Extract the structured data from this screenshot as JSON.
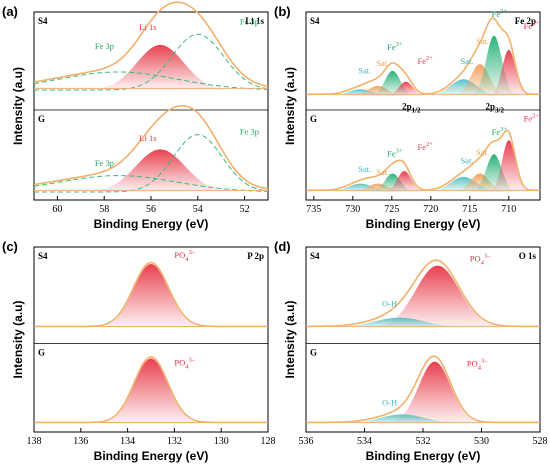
{
  "colors": {
    "envelope": "#f2b06b",
    "li": "#e8414f",
    "fe_green": "#2db37a",
    "fe_red": "#e8414f",
    "sat_orange": "#f5a05e",
    "sat_teal": "#5bc0c9",
    "po4": "#e8414f",
    "oh": "#5bc0c9",
    "green_label": "#1fa463",
    "red_label": "#e8303f",
    "orange_label": "#f0a050",
    "teal_label": "#3fb6c0",
    "dashed": "#3cb97a"
  },
  "chart_data": [
    {
      "id": "a",
      "type": "line",
      "panel_label": "(a)",
      "spectrum": "Li 1s",
      "xlabel": "Binding Energy (eV)",
      "ylabel": "Intensity (a.u)",
      "xlim": [
        61,
        51
      ],
      "xticks": [
        60,
        58,
        56,
        54,
        52
      ],
      "samples": [
        {
          "name": "S4",
          "peaks": [
            {
              "label": "Li 1s",
              "center": 55.6,
              "height": 0.55,
              "width": 1.0,
              "style": "filled",
              "color": "li"
            },
            {
              "label": "Fe 3p",
              "center": 57.4,
              "height": 0.22,
              "width": 2.5,
              "style": "dashed",
              "color": "dashed"
            },
            {
              "label": "Fe 3p",
              "center": 54.0,
              "height": 0.68,
              "width": 1.1,
              "style": "dashed",
              "color": "dashed"
            }
          ],
          "peak_labels": [
            {
              "text": "Li 1s",
              "color": "red_label",
              "x": 56.5,
              "y": 0.73
            },
            {
              "text": "Fe 3p",
              "color": "green_label",
              "x": 58.4,
              "y": 0.5
            },
            {
              "text": "Fe 3p",
              "color": "green_label",
              "x": 52.2,
              "y": 0.8
            }
          ]
        },
        {
          "name": "G",
          "peaks": [
            {
              "label": "Li 1s",
              "center": 55.6,
              "height": 0.52,
              "width": 1.05,
              "style": "filled",
              "color": "li"
            },
            {
              "label": "Fe 3p",
              "center": 57.4,
              "height": 0.2,
              "width": 2.5,
              "style": "dashed",
              "color": "dashed"
            },
            {
              "label": "Fe 3p",
              "center": 54.0,
              "height": 0.7,
              "width": 1.05,
              "style": "dashed",
              "color": "dashed"
            }
          ],
          "peak_labels": [
            {
              "text": "Li 1s",
              "color": "red_label",
              "x": 56.5,
              "y": 0.62
            },
            {
              "text": "Fe 3p",
              "color": "green_label",
              "x": 58.4,
              "y": 0.32
            },
            {
              "text": "Fe 3p",
              "color": "green_label",
              "x": 52.2,
              "y": 0.7
            }
          ]
        }
      ]
    },
    {
      "id": "b",
      "type": "line",
      "panel_label": "(b)",
      "spectrum": "Fe 2p",
      "xlabel": "Binding Energy (eV)",
      "ylabel": "Intensity (a.u)",
      "xlim": [
        736,
        706
      ],
      "xticks": [
        735,
        730,
        725,
        720,
        715,
        710
      ],
      "annotations": [
        "2p1/2",
        "2p3/2"
      ],
      "samples": [
        {
          "name": "S4",
          "peaks": [
            {
              "label": "Sat.",
              "center": 729.0,
              "height": 0.08,
              "width": 1.6,
              "color": "sat_teal"
            },
            {
              "label": "Sat.",
              "center": 726.8,
              "height": 0.12,
              "width": 1.3,
              "color": "sat_orange"
            },
            {
              "label": "Fe3+",
              "center": 724.9,
              "height": 0.3,
              "width": 1.0,
              "color": "fe_green"
            },
            {
              "label": "Fe2+",
              "center": 723.2,
              "height": 0.17,
              "width": 0.9,
              "color": "fe_red"
            },
            {
              "label": "Sat.",
              "center": 715.8,
              "height": 0.2,
              "width": 1.7,
              "color": "sat_teal"
            },
            {
              "label": "Sat.",
              "center": 713.7,
              "height": 0.38,
              "width": 1.2,
              "color": "sat_orange"
            },
            {
              "label": "Fe3+",
              "center": 711.9,
              "height": 0.72,
              "width": 1.0,
              "color": "fe_green"
            },
            {
              "label": "Fe2+",
              "center": 710.0,
              "height": 0.55,
              "width": 0.85,
              "color": "fe_red"
            }
          ],
          "peak_labels": [
            {
              "text": "Sat.",
              "color": "teal_label",
              "x": 729.3,
              "y": 0.27
            },
            {
              "text": "Sat.",
              "color": "orange_label",
              "x": 727.0,
              "y": 0.36
            },
            {
              "text": "Fe3+",
              "color": "green_label",
              "x": 725.6,
              "y": 0.55
            },
            {
              "text": "Fe2+",
              "color": "red_label",
              "x": 721.7,
              "y": 0.38
            },
            {
              "text": "Sat.",
              "color": "teal_label",
              "x": 716.2,
              "y": 0.38
            },
            {
              "text": "Sat.",
              "color": "orange_label",
              "x": 714.2,
              "y": 0.62
            },
            {
              "text": "Fe3+",
              "color": "green_label",
              "x": 712.2,
              "y": 0.94
            },
            {
              "text": "Fe2+",
              "color": "red_label",
              "x": 708.1,
              "y": 0.8
            }
          ]
        },
        {
          "name": "G",
          "peaks": [
            {
              "label": "Sat.",
              "center": 729.0,
              "height": 0.1,
              "width": 1.6,
              "color": "sat_teal"
            },
            {
              "label": "Sat.",
              "center": 726.8,
              "height": 0.1,
              "width": 1.3,
              "color": "sat_orange"
            },
            {
              "label": "Fe3+",
              "center": 724.9,
              "height": 0.22,
              "width": 1.0,
              "color": "fe_green"
            },
            {
              "label": "Fe2+",
              "center": 723.4,
              "height": 0.25,
              "width": 0.9,
              "color": "fe_red"
            },
            {
              "label": "Sat.",
              "center": 715.8,
              "height": 0.18,
              "width": 1.7,
              "color": "sat_teal"
            },
            {
              "label": "Sat.",
              "center": 713.7,
              "height": 0.22,
              "width": 1.2,
              "color": "sat_orange"
            },
            {
              "label": "Fe3+",
              "center": 711.9,
              "height": 0.45,
              "width": 1.0,
              "color": "fe_green"
            },
            {
              "label": "Fe2+",
              "center": 710.0,
              "height": 0.62,
              "width": 0.85,
              "color": "fe_red"
            }
          ],
          "peak_labels": [
            {
              "text": "Sat.",
              "color": "teal_label",
              "x": 729.3,
              "y": 0.24
            },
            {
              "text": "Sat.",
              "color": "orange_label",
              "x": 727.0,
              "y": 0.2
            },
            {
              "text": "Fe3+",
              "color": "green_label",
              "x": 725.6,
              "y": 0.42
            },
            {
              "text": "Fe2+",
              "color": "red_label",
              "x": 721.7,
              "y": 0.5
            },
            {
              "text": "Sat.",
              "color": "teal_label",
              "x": 716.2,
              "y": 0.34
            },
            {
              "text": "Sat.",
              "color": "orange_label",
              "x": 714.2,
              "y": 0.44
            },
            {
              "text": "Fe3+",
              "color": "green_label",
              "x": 712.2,
              "y": 0.68
            },
            {
              "text": "Fe2+",
              "color": "red_label",
              "x": 708.1,
              "y": 0.84
            }
          ]
        }
      ]
    },
    {
      "id": "c",
      "type": "line",
      "panel_label": "(c)",
      "spectrum": "P 2p",
      "xlabel": "Binding Energy (eV)",
      "ylabel": "Intensity (a.u)",
      "xlim": [
        138,
        128
      ],
      "xticks": [
        138,
        136,
        134,
        132,
        130,
        128
      ],
      "samples": [
        {
          "name": "S4",
          "peaks": [
            {
              "label": "PO4 3-",
              "center": 133.0,
              "height": 0.82,
              "width": 0.75,
              "color": "po4"
            }
          ],
          "peak_labels": [
            {
              "text": "PO4 3-",
              "color": "red_label",
              "x": 132.0,
              "y": 0.9
            }
          ]
        },
        {
          "name": "G",
          "peaks": [
            {
              "label": "PO4 3-",
              "center": 133.0,
              "height": 0.84,
              "width": 0.72,
              "color": "po4"
            }
          ],
          "peak_labels": [
            {
              "text": "PO4 3-",
              "color": "red_label",
              "x": 132.0,
              "y": 0.75
            }
          ]
        }
      ]
    },
    {
      "id": "d",
      "type": "line",
      "panel_label": "(d)",
      "spectrum": "O 1s",
      "xlabel": "Binding Energy (eV)",
      "ylabel": "Intensity (a.u)",
      "xlim": [
        536,
        528
      ],
      "xticks": [
        536,
        534,
        532,
        530,
        528
      ],
      "samples": [
        {
          "name": "S4",
          "peaks": [
            {
              "label": "PO4 3-",
              "center": 531.5,
              "height": 0.78,
              "width": 0.75,
              "color": "po4"
            },
            {
              "label": "O-H",
              "center": 532.8,
              "height": 0.13,
              "width": 0.9,
              "color": "oh"
            }
          ],
          "peak_labels": [
            {
              "text": "PO4 3-",
              "color": "red_label",
              "x": 530.4,
              "y": 0.83
            },
            {
              "text": "O-H",
              "color": "teal_label",
              "x": 533.4,
              "y": 0.27
            }
          ]
        },
        {
          "name": "G",
          "peaks": [
            {
              "label": "PO4 3-",
              "center": 531.6,
              "height": 0.78,
              "width": 0.55,
              "color": "po4"
            },
            {
              "label": "O-H",
              "center": 532.7,
              "height": 0.12,
              "width": 0.8,
              "color": "oh"
            }
          ],
          "peak_labels": [
            {
              "text": "PO4 3-",
              "color": "red_label",
              "x": 530.5,
              "y": 0.72
            },
            {
              "text": "O-H",
              "color": "teal_label",
              "x": 533.4,
              "y": 0.23
            }
          ]
        }
      ]
    }
  ]
}
